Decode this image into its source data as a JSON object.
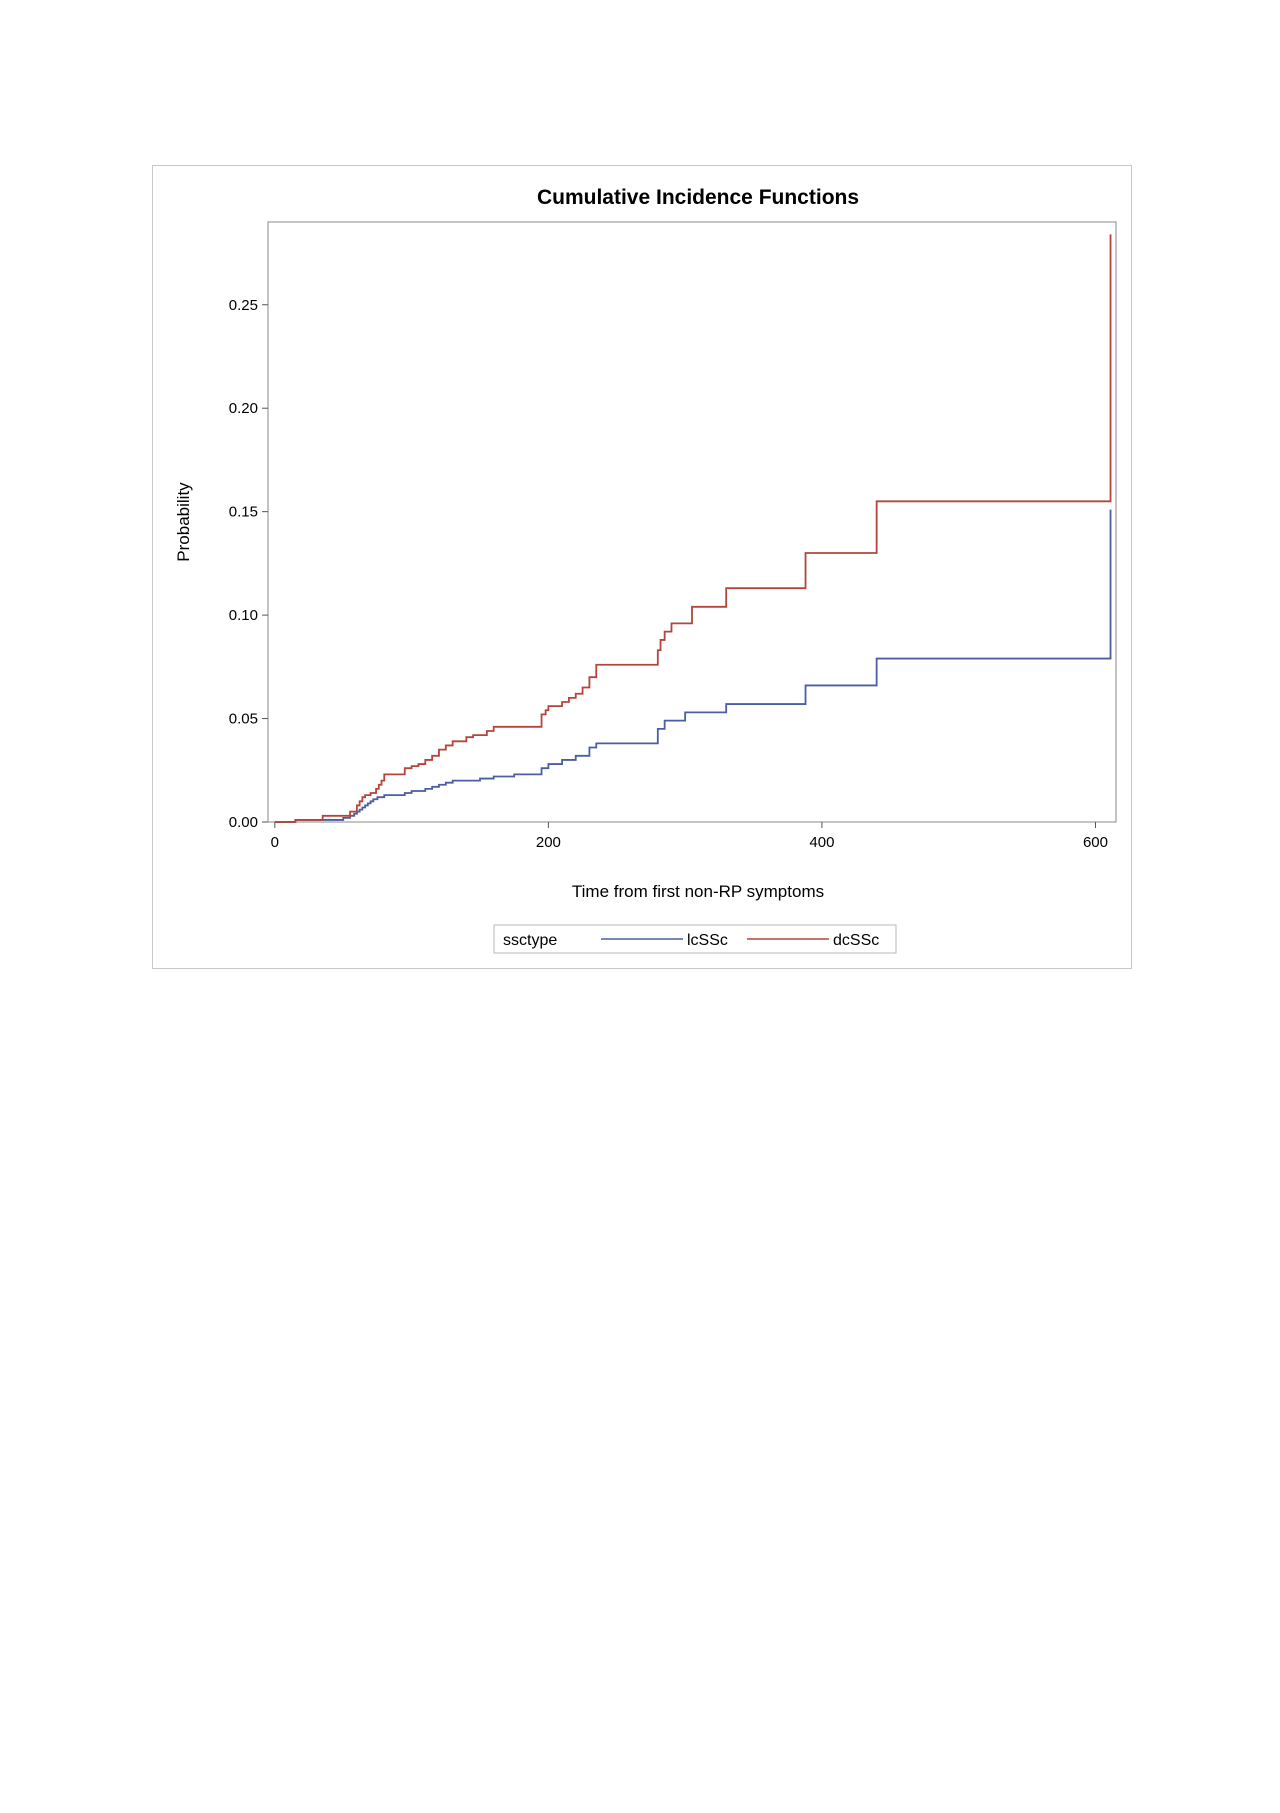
{
  "chart_data": {
    "type": "line",
    "step": true,
    "title": "Cumulative Incidence Functions",
    "xlabel": "Time from first non-RP symptoms",
    "ylabel": "Probability",
    "xlim": [
      -5,
      615
    ],
    "ylim": [
      0,
      0.29
    ],
    "xticks": [
      0,
      200,
      400,
      600
    ],
    "xtick_labels": [
      "0",
      "200",
      "400",
      "600"
    ],
    "yticks": [
      0,
      0.05,
      0.1,
      0.15,
      0.2,
      0.25
    ],
    "ytick_labels": [
      "0.00",
      "0.05",
      "0.10",
      "0.15",
      "0.20",
      "0.25"
    ],
    "legend": {
      "title": "ssctype",
      "position": "bottom",
      "entries": [
        "lcSSc",
        "dcSSc"
      ]
    },
    "series": [
      {
        "name": "lcSSc",
        "color": "#4a5fa3",
        "x": [
          0,
          15,
          50,
          55,
          58,
          60,
          62,
          64,
          66,
          68,
          70,
          72,
          75,
          80,
          95,
          100,
          110,
          115,
          120,
          125,
          130,
          150,
          160,
          175,
          195,
          200,
          210,
          220,
          230,
          235,
          280,
          285,
          300,
          330,
          388,
          440,
          610,
          611
        ],
        "y": [
          0,
          0.001,
          0.002,
          0.003,
          0.004,
          0.005,
          0.006,
          0.007,
          0.008,
          0.009,
          0.01,
          0.011,
          0.012,
          0.013,
          0.014,
          0.015,
          0.016,
          0.017,
          0.018,
          0.019,
          0.02,
          0.021,
          0.022,
          0.023,
          0.026,
          0.028,
          0.03,
          0.032,
          0.036,
          0.038,
          0.045,
          0.049,
          0.053,
          0.057,
          0.066,
          0.079,
          0.079,
          0.151
        ]
      },
      {
        "name": "dcSSc",
        "color": "#b5443b",
        "x": [
          0,
          15,
          35,
          55,
          60,
          62,
          64,
          66,
          70,
          74,
          76,
          78,
          80,
          95,
          100,
          105,
          110,
          115,
          120,
          125,
          130,
          140,
          145,
          155,
          160,
          195,
          198,
          200,
          210,
          215,
          220,
          225,
          230,
          235,
          280,
          282,
          285,
          290,
          305,
          330,
          388,
          440,
          610,
          611
        ],
        "y": [
          0,
          0.001,
          0.003,
          0.005,
          0.008,
          0.01,
          0.012,
          0.013,
          0.014,
          0.016,
          0.018,
          0.02,
          0.023,
          0.026,
          0.027,
          0.028,
          0.03,
          0.032,
          0.035,
          0.037,
          0.039,
          0.041,
          0.042,
          0.044,
          0.046,
          0.052,
          0.054,
          0.056,
          0.058,
          0.06,
          0.062,
          0.065,
          0.07,
          0.076,
          0.083,
          0.088,
          0.092,
          0.096,
          0.104,
          0.113,
          0.13,
          0.155,
          0.155,
          0.284
        ]
      }
    ]
  }
}
